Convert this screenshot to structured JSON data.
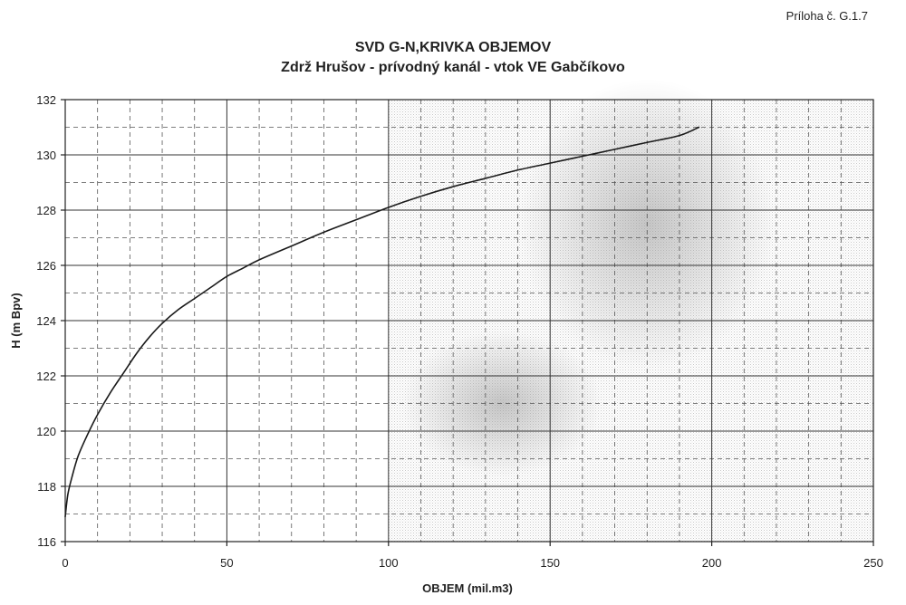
{
  "header": {
    "annex_label": "Príloha č. G.1.7",
    "title": "SVD G-N,KRIVKA OBJEMOV",
    "subtitle": "Zdrž Hrušov - prívodný kanál - vtok VE Gabčíkovo"
  },
  "chart_data": {
    "type": "line",
    "title": "SVD G-N,KRIVKA OBJEMOV",
    "subtitle": "Zdrž Hrušov - prívodný kanál - vtok VE Gabčíkovo",
    "xlabel": "OBJEM (mil.m3)",
    "ylabel": "H (m Bpv)",
    "xlim": [
      0,
      250
    ],
    "ylim": [
      116,
      132
    ],
    "x_ticks": [
      0,
      50,
      100,
      150,
      200,
      250
    ],
    "y_ticks": [
      116,
      118,
      120,
      122,
      124,
      126,
      128,
      130,
      132
    ],
    "x_ticks_labels": [
      "0",
      "50",
      "100",
      "150",
      "200",
      "250"
    ],
    "y_ticks_labels": [
      "116",
      "118",
      "120",
      "122",
      "124",
      "126",
      "128",
      "130",
      "132"
    ],
    "grid": true,
    "minor_grid": "dashed",
    "series": [
      {
        "x": [
          0,
          0.8,
          2,
          4,
          7,
          10,
          14,
          18,
          22,
          26,
          30,
          35,
          40,
          45,
          50,
          55,
          60,
          70,
          80,
          90,
          100,
          110,
          120,
          130,
          140,
          150,
          160,
          170,
          180,
          190,
          196
        ],
        "y": [
          116.9,
          117.7,
          118.3,
          119.1,
          119.9,
          120.6,
          121.4,
          122.1,
          122.8,
          123.4,
          123.9,
          124.4,
          124.8,
          125.2,
          125.6,
          125.9,
          126.2,
          126.7,
          127.2,
          127.65,
          128.1,
          128.5,
          128.85,
          129.15,
          129.45,
          129.7,
          129.95,
          130.2,
          130.45,
          130.7,
          131.0
        ],
        "color": "#1a1a1a"
      }
    ]
  }
}
